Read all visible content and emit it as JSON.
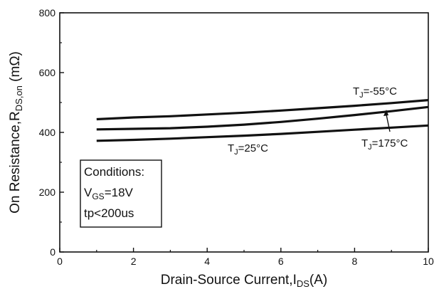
{
  "chart_data": {
    "type": "line",
    "xlabel": {
      "main": "Drain-Source Current,I",
      "sub": "DS",
      "unit": "(A)"
    },
    "ylabel": {
      "main": "On Resistance,R",
      "sub": "DS,on",
      "unit": " (mΩ)"
    },
    "xlim": [
      0,
      10
    ],
    "ylim": [
      0,
      800
    ],
    "xticks": [
      0,
      2,
      4,
      6,
      8,
      10
    ],
    "yticks": [
      0,
      200,
      400,
      600,
      800
    ],
    "grid": false,
    "series": [
      {
        "name": "T_J=-55°C",
        "x": [
          1,
          2,
          3,
          4,
          5,
          6,
          7,
          8,
          9,
          10
        ],
        "values": [
          444,
          450,
          454,
          460,
          466,
          473,
          481,
          489,
          498,
          508
        ]
      },
      {
        "name": "T_J=175°C",
        "x": [
          1,
          2,
          3,
          4,
          5,
          6,
          7,
          8,
          9,
          10
        ],
        "values": [
          410,
          412,
          414,
          419,
          426,
          435,
          446,
          458,
          471,
          485
        ]
      },
      {
        "name": "T_J=25°C",
        "x": [
          1,
          2,
          3,
          4,
          5,
          6,
          7,
          8,
          9,
          10
        ],
        "values": [
          372,
          375,
          379,
          384,
          389,
          395,
          402,
          409,
          416,
          423
        ]
      }
    ],
    "annotations": [
      {
        "prefix": "T",
        "sub": "J",
        "suffix": "=-55°C"
      },
      {
        "prefix": "T",
        "sub": "J",
        "suffix": "=25°C"
      },
      {
        "prefix": "T",
        "sub": "J",
        "suffix": "=175°C"
      }
    ],
    "conditions": {
      "title": "Conditions:",
      "vgs": {
        "prefix": "V",
        "sub": "GS",
        "suffix": "=18V"
      },
      "tp": "tp<200us"
    }
  }
}
